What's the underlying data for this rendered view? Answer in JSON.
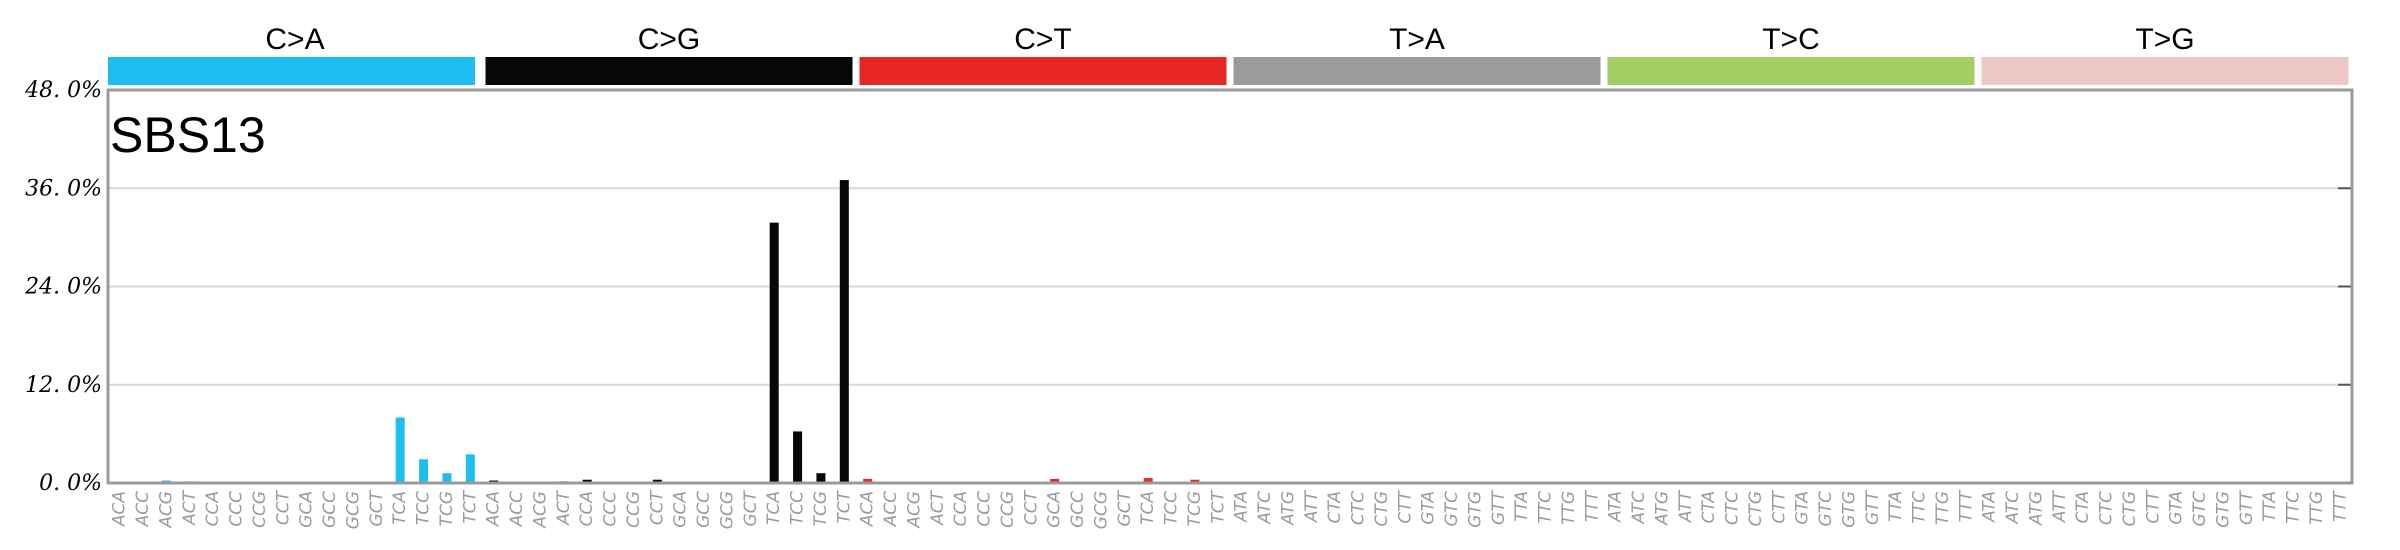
{
  "chart_data": {
    "type": "bar",
    "title": "SBS13",
    "xlabel": "",
    "ylabel": "",
    "ylim": [
      0,
      48
    ],
    "y_ticks": [
      {
        "value": 0,
        "label": "0. 0%"
      },
      {
        "value": 12,
        "label": "12. 0%"
      },
      {
        "value": 24,
        "label": "24. 0%"
      },
      {
        "value": 36,
        "label": "36. 0%"
      },
      {
        "value": 48,
        "label": "48. 0%"
      }
    ],
    "grid": true,
    "mutation_types": [
      {
        "label": "C>A",
        "color": "#1ebff0"
      },
      {
        "label": "C>G",
        "color": "#050708"
      },
      {
        "label": "C>T",
        "color": "#e62725"
      },
      {
        "label": "T>A",
        "color": "#9b9b9b"
      },
      {
        "label": "T>C",
        "color": "#a1cf64"
      },
      {
        "label": "T>G",
        "color": "#ecc7c4"
      }
    ],
    "contexts": [
      [
        "ACA",
        "ACC",
        "ACG",
        "ACT",
        "CCA",
        "CCC",
        "CCG",
        "CCT",
        "GCA",
        "GCC",
        "GCG",
        "GCT",
        "TCA",
        "TCC",
        "TCG",
        "TCT"
      ],
      [
        "ACA",
        "ACC",
        "ACG",
        "ACT",
        "CCA",
        "CCC",
        "CCG",
        "CCT",
        "GCA",
        "GCC",
        "GCG",
        "GCT",
        "TCA",
        "TCC",
        "TCG",
        "TCT"
      ],
      [
        "ACA",
        "ACC",
        "ACG",
        "ACT",
        "CCA",
        "CCC",
        "CCG",
        "CCT",
        "GCA",
        "GCC",
        "GCG",
        "GCT",
        "TCA",
        "TCC",
        "TCG",
        "TCT"
      ],
      [
        "ATA",
        "ATC",
        "ATG",
        "ATT",
        "CTA",
        "CTC",
        "CTG",
        "CTT",
        "GTA",
        "GTC",
        "GTG",
        "GTT",
        "TTA",
        "TTC",
        "TTG",
        "TTT"
      ],
      [
        "ATA",
        "ATC",
        "ATG",
        "ATT",
        "CTA",
        "CTC",
        "CTG",
        "CTT",
        "GTA",
        "GTC",
        "GTG",
        "GTT",
        "TTA",
        "TTC",
        "TTG",
        "TTT"
      ],
      [
        "ATA",
        "ATC",
        "ATG",
        "ATT",
        "CTA",
        "CTC",
        "CTG",
        "CTT",
        "GTA",
        "GTC",
        "GTG",
        "GTT",
        "TTA",
        "TTC",
        "TTG",
        "TTT"
      ]
    ],
    "values": [
      [
        0.1,
        0.0,
        0.3,
        0.2,
        0.0,
        0.0,
        0.0,
        0.0,
        0.0,
        0.1,
        0.0,
        0.0,
        8.0,
        2.9,
        1.2,
        3.5
      ],
      [
        0.3,
        0.0,
        0.1,
        0.2,
        0.4,
        0.0,
        0.1,
        0.4,
        0.0,
        0.1,
        0.1,
        0.0,
        31.8,
        6.3,
        1.2,
        37.0
      ],
      [
        0.5,
        0.0,
        0.1,
        0.1,
        0.0,
        0.0,
        0.0,
        0.0,
        0.5,
        0.0,
        0.1,
        0.0,
        0.6,
        0.0,
        0.4,
        0.0
      ],
      [
        0,
        0,
        0,
        0,
        0,
        0,
        0,
        0,
        0,
        0,
        0,
        0,
        0,
        0,
        0,
        0
      ],
      [
        0,
        0,
        0,
        0,
        0,
        0,
        0,
        0,
        0,
        0,
        0,
        0,
        0,
        0,
        0,
        0
      ],
      [
        0,
        0,
        0,
        0,
        0,
        0,
        0,
        0,
        0,
        0,
        0,
        0,
        0,
        0,
        0,
        0
      ]
    ]
  }
}
